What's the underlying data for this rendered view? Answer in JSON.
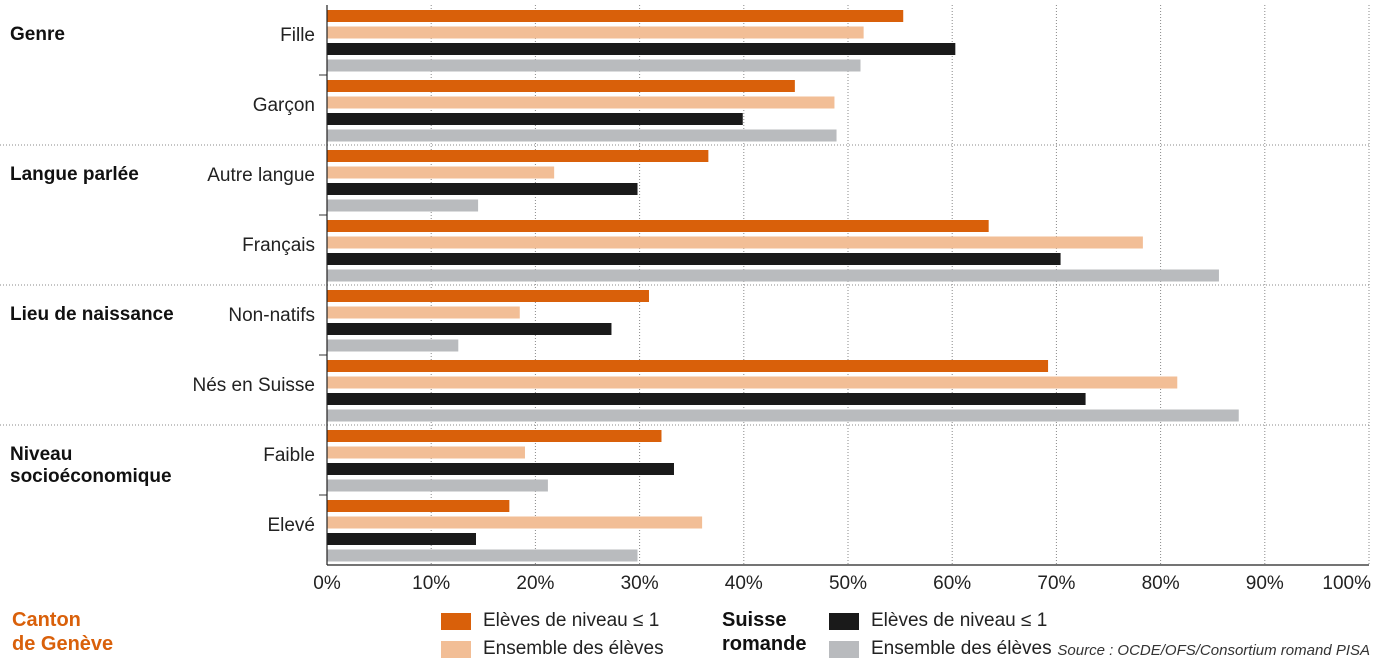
{
  "chart_data": {
    "type": "bar",
    "orientation": "horizontal",
    "xlim": [
      0,
      100
    ],
    "ticks": [
      "0%",
      "10%",
      "20%",
      "30%",
      "40%",
      "50%",
      "60%",
      "70%",
      "80%",
      "90%",
      "100%"
    ],
    "grid": true,
    "groups": [
      {
        "label": "Genre",
        "categories": [
          "Fille",
          "Garçon"
        ]
      },
      {
        "label": "Langue parlée",
        "categories": [
          "Autre langue",
          "Français"
        ]
      },
      {
        "label": "Lieu de naissance",
        "categories": [
          "Non-natifs",
          "Nés en Suisse"
        ]
      },
      {
        "label": "Niveau socioéconomique",
        "label_lines": [
          "Niveau",
          "socioéconomique"
        ],
        "categories": [
          "Faible",
          "Elevé"
        ]
      }
    ],
    "categories": [
      "Fille",
      "Garçon",
      "Autre langue",
      "Français",
      "Non-natifs",
      "Nés en Suisse",
      "Faible",
      "Elevé"
    ],
    "series": [
      {
        "name": "Elèves de niveau ≤ 1",
        "region": "Canton de Genève",
        "color": "#d9600a",
        "values": [
          55.3,
          44.9,
          36.6,
          63.5,
          30.9,
          69.2,
          32.1,
          17.5
        ]
      },
      {
        "name": "Ensemble des élèves",
        "region": "Canton de Genève",
        "color": "#f2be96",
        "values": [
          51.5,
          48.7,
          21.8,
          78.3,
          18.5,
          81.6,
          19.0,
          36.0
        ]
      },
      {
        "name": "Elèves de niveau ≤ 1",
        "region": "Suisse romande",
        "color": "#1a1a1a",
        "values": [
          60.3,
          39.9,
          29.8,
          70.4,
          27.3,
          72.8,
          33.3,
          14.3
        ]
      },
      {
        "name": "Ensemble des élèves",
        "region": "Suisse romande",
        "color": "#b9bbbe",
        "values": [
          51.2,
          48.9,
          14.5,
          85.6,
          12.6,
          87.5,
          21.2,
          29.8
        ]
      }
    ]
  },
  "legend": {
    "geneve": {
      "title_line1": "Canton",
      "title_line2": "de Genève",
      "color": "#d9600a",
      "item1": "Elèves de niveau ≤ 1",
      "item2": "Ensemble des élèves"
    },
    "romande": {
      "title_line1": "Suisse",
      "title_line2": "romande",
      "color": "#111111",
      "item1": "Elèves de niveau ≤ 1",
      "item2": "Ensemble des élèves"
    }
  },
  "source": "Source : OCDE/OFS/Consortium romand PISA"
}
